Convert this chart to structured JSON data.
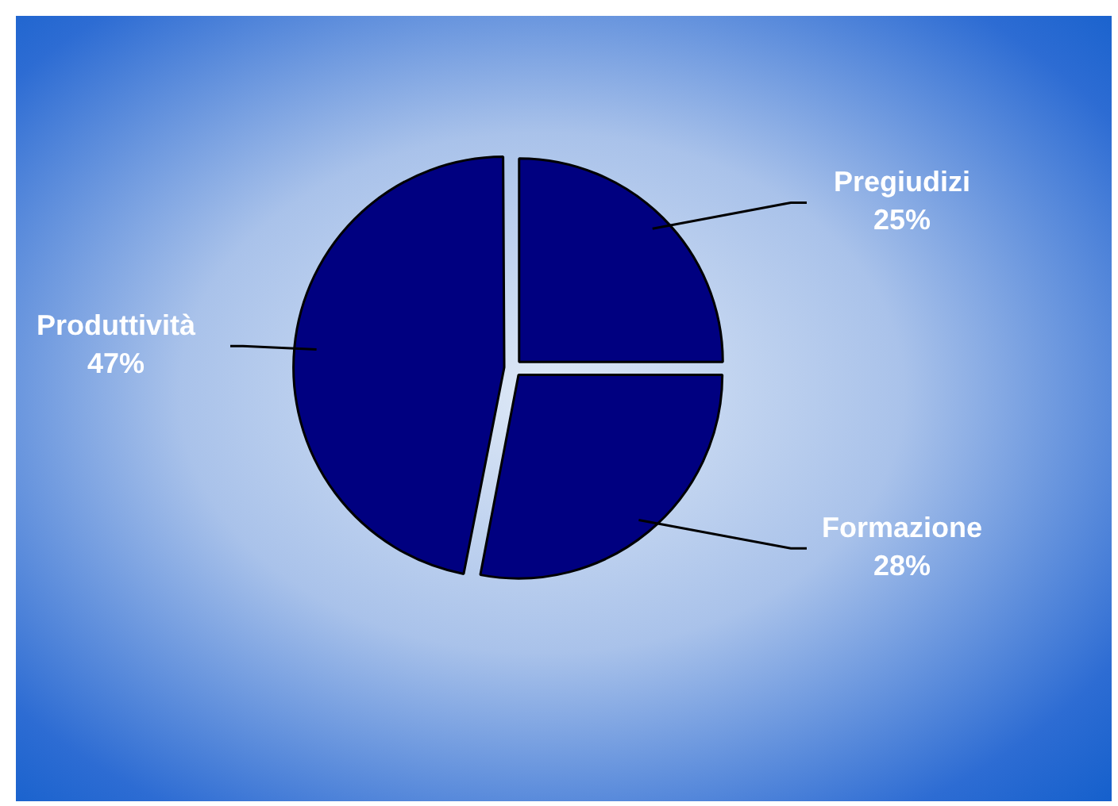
{
  "chart_data": {
    "type": "pie",
    "categories": [
      "Pregiudizi",
      "Formazione",
      "Produttività"
    ],
    "values": [
      25,
      28,
      47
    ],
    "value_labels": [
      "25%",
      "28%",
      "47%"
    ],
    "colors": [
      "#000080",
      "#000080",
      "#000080"
    ],
    "legend": false
  }
}
